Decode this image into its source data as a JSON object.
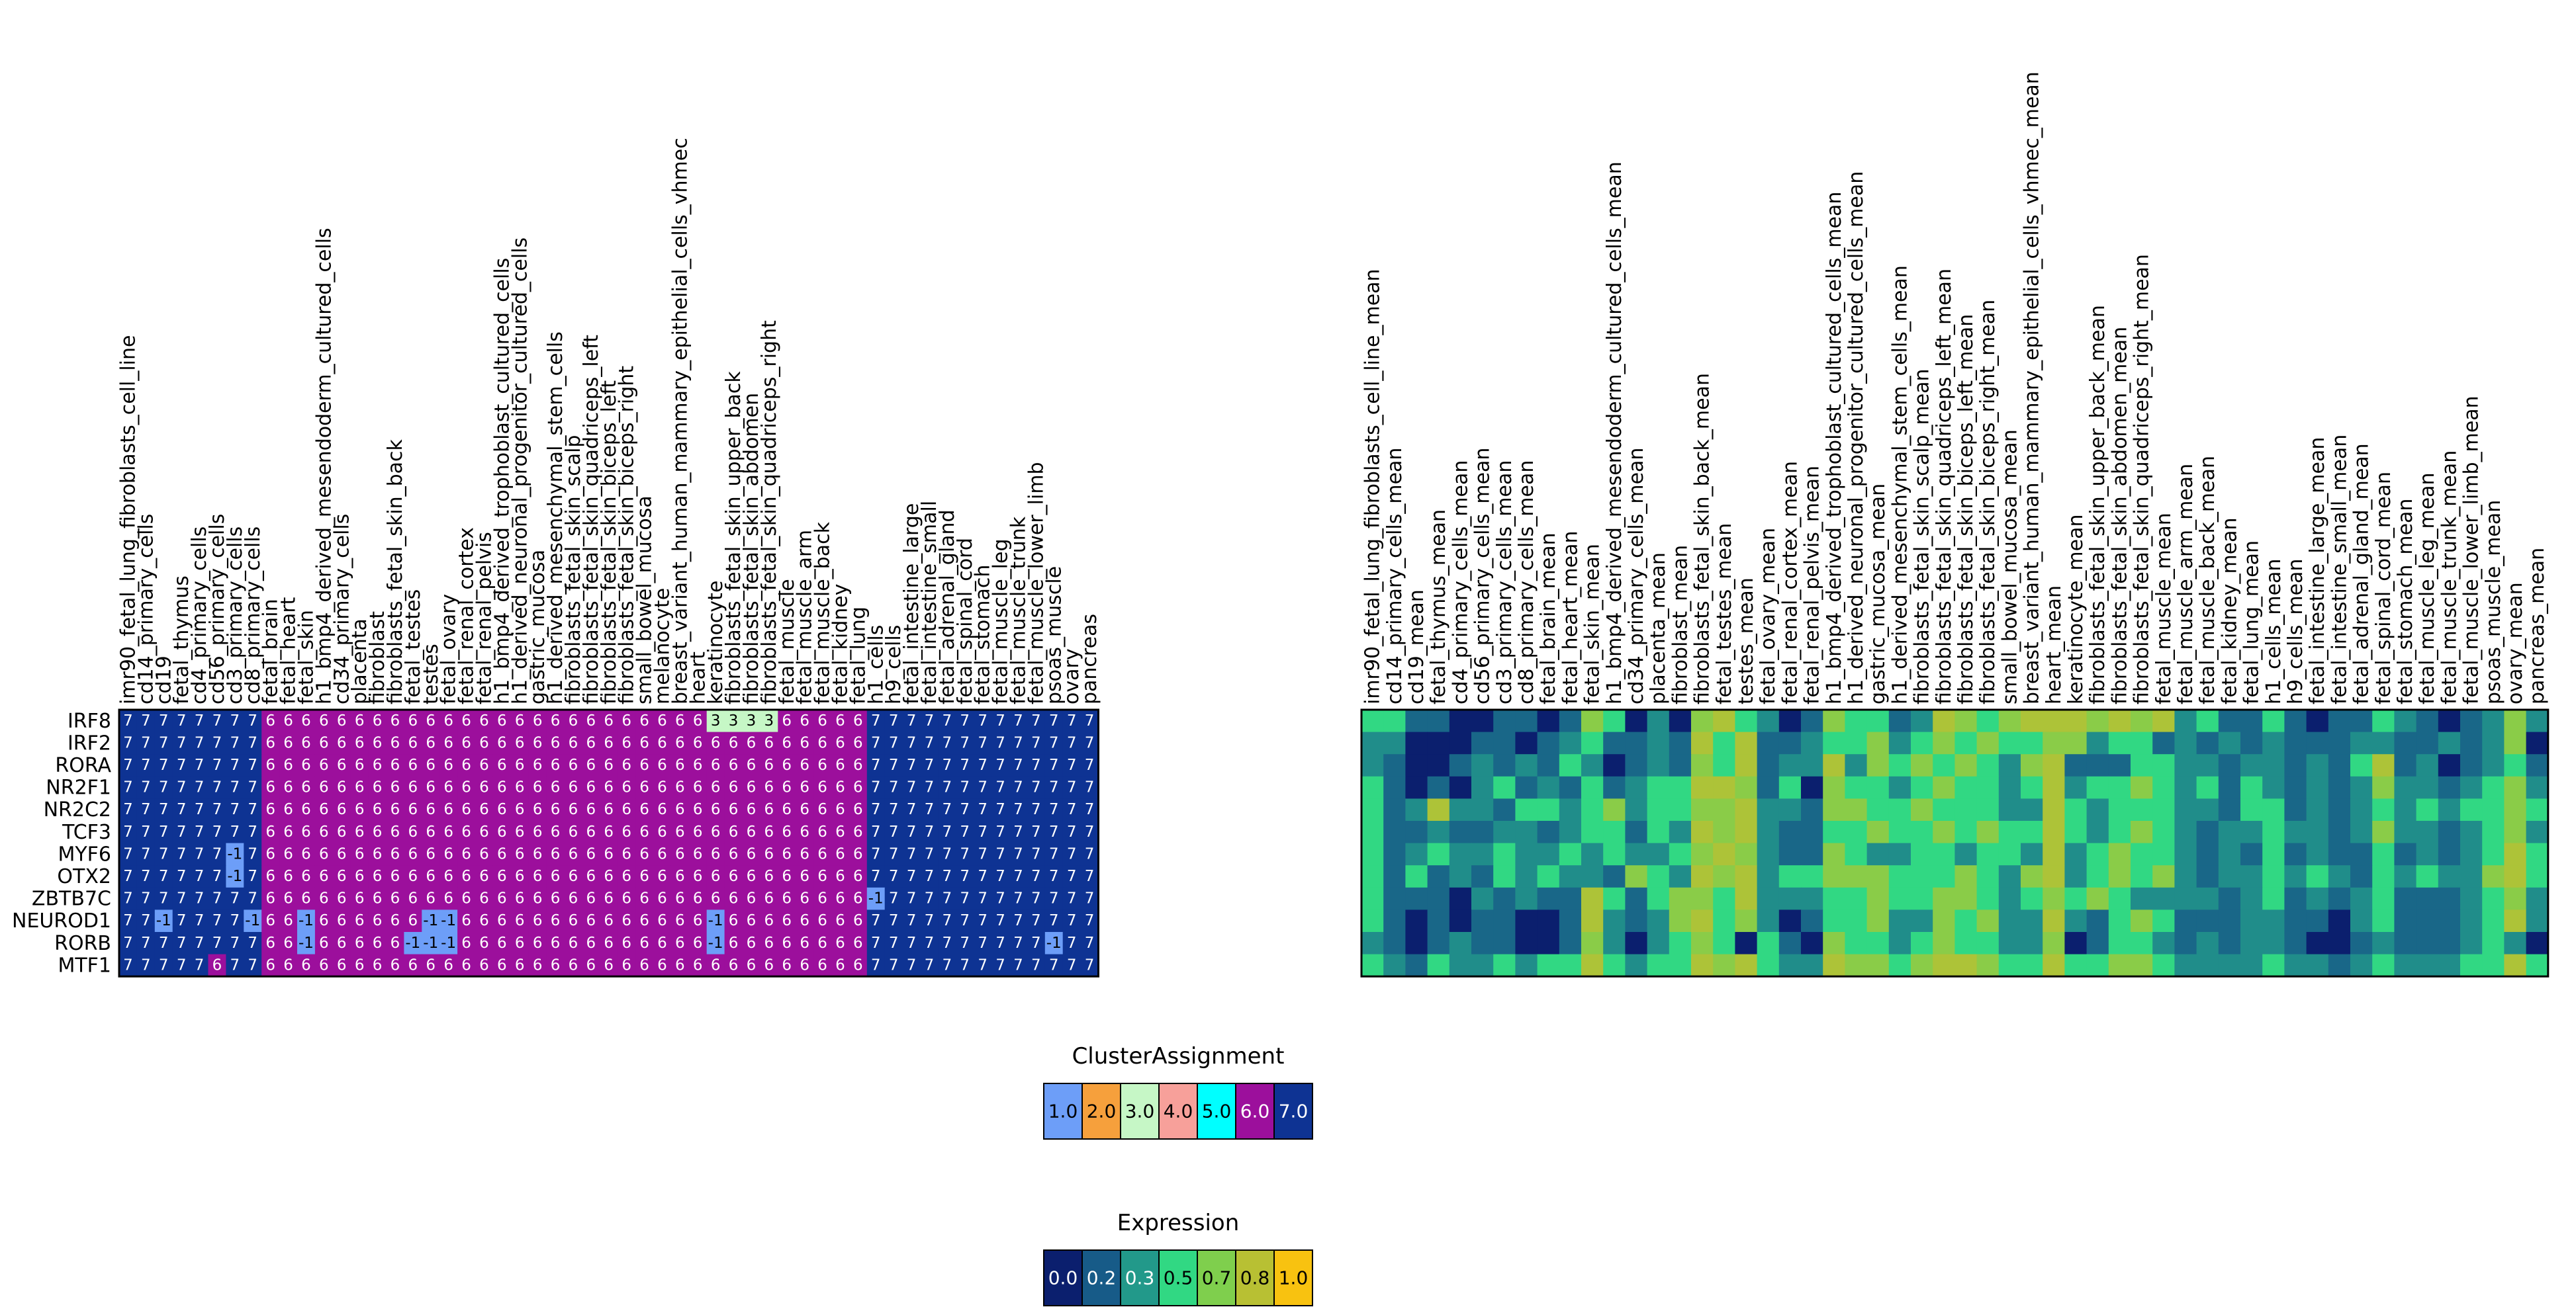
{
  "chart_data": {
    "type": "heatmap",
    "rows": [
      "IRF8",
      "IRF2",
      "RORA",
      "NR2F1",
      "NR2C2",
      "TCF3",
      "MYF6",
      "OTX2",
      "ZBTB7C",
      "NEUROD1",
      "RORB",
      "MTF1"
    ],
    "cluster_columns": [
      "imr90_fetal_lung_fibroblasts_cell_line",
      "cd14_primary_cells",
      "cd19",
      "fetal_thymus",
      "cd4_primary_cells",
      "cd56_primary_cells",
      "cd3_primary_cells",
      "cd8_primary_cells",
      "fetal_brain",
      "fetal_heart",
      "fetal_skin",
      "h1_bmp4_derived_mesendoderm_cultured_cells",
      "cd34_primary_cells",
      "placenta",
      "fibroblast",
      "fibroblasts_fetal_skin_back",
      "fetal_testes",
      "testes",
      "fetal_ovary",
      "fetal_renal_cortex",
      "fetal_renal_pelvis",
      "h1_bmp4_derived_trophoblast_cultured_cells",
      "h1_derived_neuronal_progenitor_cultured_cells",
      "gastric_mucosa",
      "h1_derived_mesenchymal_stem_cells",
      "fibroblasts_fetal_skin_scalp",
      "fibroblasts_fetal_skin_quadriceps_left",
      "fibroblasts_fetal_skin_biceps_left",
      "fibroblasts_fetal_skin_biceps_right",
      "small_bowel_mucosa",
      "melanocyte",
      "breast_variant_human_mammary_epithelial_cells_vhmec",
      "heart",
      "keratinocyte",
      "fibroblasts_fetal_skin_upper_back",
      "fibroblasts_fetal_skin_abdomen",
      "fibroblasts_fetal_skin_quadriceps_right",
      "fetal_muscle",
      "fetal_muscle_arm",
      "fetal_muscle_back",
      "fetal_kidney",
      "fetal_lung",
      "h1_cells",
      "h9_cells",
      "fetal_intestine_large",
      "fetal_intestine_small",
      "fetal_adrenal_gland",
      "fetal_spinal_cord",
      "fetal_stomach",
      "fetal_muscle_leg",
      "fetal_muscle_trunk",
      "fetal_muscle_lower_limb",
      "psoas_muscle",
      "ovary",
      "pancreas"
    ],
    "expression_columns": [
      "imr90_fetal_lung_fibroblasts_cell_line_mean",
      "cd14_primary_cells_mean",
      "cd19_mean",
      "fetal_thymus_mean",
      "cd4_primary_cells_mean",
      "cd56_primary_cells_mean",
      "cd3_primary_cells_mean",
      "cd8_primary_cells_mean",
      "fetal_brain_mean",
      "fetal_heart_mean",
      "fetal_skin_mean",
      "h1_bmp4_derived_mesendoderm_cultured_cells_mean",
      "cd34_primary_cells_mean",
      "placenta_mean",
      "fibroblast_mean",
      "fibroblasts_fetal_skin_back_mean",
      "fetal_testes_mean",
      "testes_mean",
      "fetal_ovary_mean",
      "fetal_renal_cortex_mean",
      "fetal_renal_pelvis_mean",
      "h1_bmp4_derived_trophoblast_cultured_cells_mean",
      "h1_derived_neuronal_progenitor_cultured_cells_mean",
      "gastric_mucosa_mean",
      "h1_derived_mesenchymal_stem_cells_mean",
      "fibroblasts_fetal_skin_scalp_mean",
      "fibroblasts_fetal_skin_quadriceps_left_mean",
      "fibroblasts_fetal_skin_biceps_left_mean",
      "fibroblasts_fetal_skin_biceps_right_mean",
      "small_bowel_mucosa_mean",
      "breast_variant_human_mammary_epithelial_cells_vhmec_mean",
      "heart_mean",
      "keratinocyte_mean",
      "fibroblasts_fetal_skin_upper_back_mean",
      "fibroblasts_fetal_skin_abdomen_mean",
      "fibroblasts_fetal_skin_quadriceps_right_mean",
      "fetal_muscle_mean",
      "fetal_muscle_arm_mean",
      "fetal_muscle_back_mean",
      "fetal_kidney_mean",
      "fetal_lung_mean",
      "h1_cells_mean",
      "h9_cells_mean",
      "fetal_intestine_large_mean",
      "fetal_intestine_small_mean",
      "fetal_adrenal_gland_mean",
      "fetal_spinal_cord_mean",
      "fetal_stomach_mean",
      "fetal_muscle_leg_mean",
      "fetal_muscle_trunk_mean",
      "fetal_muscle_lower_limb_mean",
      "psoas_muscle_mean",
      "ovary_mean",
      "pancreas_mean"
    ],
    "cluster_groups": [
      {
        "value": 7,
        "count": 8
      },
      {
        "value": 6,
        "count": 34
      },
      {
        "value": 7,
        "count": 13
      }
    ],
    "cluster_overrides": [
      {
        "row": "IRF8",
        "cols": [
          33,
          34,
          35,
          36
        ],
        "value": 3
      },
      {
        "row": "MYF6",
        "cols": [
          6
        ],
        "value": -1
      },
      {
        "row": "OTX2",
        "cols": [
          6
        ],
        "value": -1
      },
      {
        "row": "ZBTB7C",
        "cols": [
          42
        ],
        "value": -1
      },
      {
        "row": "NEUROD1",
        "cols": [
          2,
          7,
          10,
          17,
          18,
          33
        ],
        "value": -1
      },
      {
        "row": "RORB",
        "cols": [
          10,
          16,
          17,
          18,
          33,
          52
        ],
        "value": -1
      },
      {
        "row": "MTF1",
        "cols": [
          5
        ],
        "value": 6
      }
    ],
    "expression_values": [
      [
        0.5,
        0.5,
        0.2,
        0.2,
        0.0,
        0.0,
        0.2,
        0.2,
        0.0,
        0.2,
        0.7,
        0.5,
        0.0,
        0.3,
        0.0,
        0.7,
        0.8,
        0.5,
        0.3,
        0.0,
        0.2,
        0.7,
        0.5,
        0.5,
        0.2,
        0.3,
        0.8,
        0.7,
        0.5,
        0.7,
        0.8,
        0.8,
        0.8,
        0.7,
        0.8,
        0.7,
        0.8,
        0.3,
        0.5,
        0.2,
        0.2,
        0.5,
        0.2,
        0.0,
        0.2,
        0.2,
        0.5,
        0.3,
        0.2,
        0.0,
        0.2,
        0.3,
        0.7,
        0.3
      ],
      [
        0.3,
        0.3,
        0.0,
        0.0,
        0.0,
        0.2,
        0.2,
        0.0,
        0.2,
        0.3,
        0.5,
        0.2,
        0.2,
        0.3,
        0.2,
        0.8,
        0.5,
        0.8,
        0.2,
        0.2,
        0.3,
        0.5,
        0.5,
        0.7,
        0.3,
        0.5,
        0.7,
        0.5,
        0.7,
        0.5,
        0.5,
        0.7,
        0.7,
        0.3,
        0.5,
        0.5,
        0.2,
        0.3,
        0.2,
        0.3,
        0.2,
        0.3,
        0.2,
        0.2,
        0.2,
        0.3,
        0.3,
        0.2,
        0.2,
        0.3,
        0.2,
        0.3,
        0.7,
        0.0
      ],
      [
        0.3,
        0.2,
        0.0,
        0.0,
        0.2,
        0.3,
        0.2,
        0.3,
        0.2,
        0.5,
        0.3,
        0.0,
        0.2,
        0.3,
        0.2,
        0.7,
        0.5,
        0.8,
        0.2,
        0.3,
        0.3,
        0.8,
        0.3,
        0.7,
        0.5,
        0.7,
        0.5,
        0.7,
        0.5,
        0.3,
        0.7,
        0.8,
        0.2,
        0.2,
        0.2,
        0.5,
        0.5,
        0.3,
        0.3,
        0.2,
        0.3,
        0.3,
        0.2,
        0.3,
        0.2,
        0.5,
        0.8,
        0.2,
        0.3,
        0.0,
        0.2,
        0.3,
        0.5,
        0.2
      ],
      [
        0.5,
        0.2,
        0.0,
        0.2,
        0.0,
        0.3,
        0.5,
        0.2,
        0.3,
        0.2,
        0.5,
        0.2,
        0.3,
        0.5,
        0.5,
        0.8,
        0.8,
        0.7,
        0.2,
        0.5,
        0.0,
        0.7,
        0.5,
        0.5,
        0.3,
        0.5,
        0.7,
        0.5,
        0.5,
        0.3,
        0.5,
        0.8,
        0.3,
        0.5,
        0.5,
        0.7,
        0.5,
        0.3,
        0.5,
        0.2,
        0.5,
        0.3,
        0.2,
        0.3,
        0.2,
        0.3,
        0.7,
        0.3,
        0.3,
        0.2,
        0.3,
        0.5,
        0.7,
        0.3
      ],
      [
        0.5,
        0.2,
        0.3,
        0.8,
        0.3,
        0.3,
        0.2,
        0.5,
        0.5,
        0.3,
        0.5,
        0.7,
        0.3,
        0.5,
        0.5,
        0.7,
        0.7,
        0.8,
        0.3,
        0.3,
        0.2,
        0.7,
        0.7,
        0.5,
        0.5,
        0.7,
        0.5,
        0.5,
        0.5,
        0.3,
        0.3,
        0.8,
        0.5,
        0.3,
        0.5,
        0.5,
        0.5,
        0.3,
        0.3,
        0.2,
        0.5,
        0.5,
        0.2,
        0.3,
        0.2,
        0.3,
        0.5,
        0.3,
        0.5,
        0.3,
        0.5,
        0.5,
        0.7,
        0.5
      ],
      [
        0.5,
        0.2,
        0.2,
        0.3,
        0.2,
        0.2,
        0.3,
        0.3,
        0.2,
        0.3,
        0.5,
        0.5,
        0.2,
        0.5,
        0.3,
        0.8,
        0.7,
        0.8,
        0.3,
        0.2,
        0.2,
        0.5,
        0.5,
        0.7,
        0.5,
        0.5,
        0.7,
        0.5,
        0.7,
        0.5,
        0.5,
        0.8,
        0.5,
        0.3,
        0.5,
        0.7,
        0.5,
        0.3,
        0.2,
        0.3,
        0.3,
        0.5,
        0.3,
        0.3,
        0.2,
        0.3,
        0.7,
        0.3,
        0.3,
        0.2,
        0.3,
        0.5,
        0.7,
        0.3
      ],
      [
        0.5,
        0.2,
        0.3,
        0.5,
        0.3,
        0.3,
        0.5,
        0.3,
        0.3,
        0.5,
        0.3,
        0.5,
        0.3,
        0.3,
        0.5,
        0.7,
        0.8,
        0.7,
        0.3,
        0.2,
        0.2,
        0.7,
        0.5,
        0.3,
        0.3,
        0.5,
        0.5,
        0.3,
        0.5,
        0.5,
        0.3,
        0.8,
        0.3,
        0.5,
        0.7,
        0.5,
        0.5,
        0.3,
        0.2,
        0.3,
        0.2,
        0.5,
        0.2,
        0.3,
        0.2,
        0.2,
        0.5,
        0.2,
        0.3,
        0.2,
        0.3,
        0.5,
        0.8,
        0.5
      ],
      [
        0.5,
        0.2,
        0.5,
        0.2,
        0.3,
        0.2,
        0.5,
        0.3,
        0.5,
        0.3,
        0.3,
        0.2,
        0.7,
        0.5,
        0.3,
        0.8,
        0.7,
        0.8,
        0.3,
        0.5,
        0.5,
        0.7,
        0.7,
        0.7,
        0.5,
        0.5,
        0.5,
        0.7,
        0.5,
        0.3,
        0.7,
        0.8,
        0.3,
        0.5,
        0.7,
        0.5,
        0.7,
        0.3,
        0.2,
        0.3,
        0.3,
        0.5,
        0.3,
        0.5,
        0.3,
        0.2,
        0.5,
        0.3,
        0.5,
        0.3,
        0.3,
        0.7,
        0.8,
        0.5
      ],
      [
        0.5,
        0.2,
        0.2,
        0.2,
        0.0,
        0.3,
        0.2,
        0.3,
        0.2,
        0.2,
        0.8,
        0.5,
        0.2,
        0.5,
        0.7,
        0.7,
        0.5,
        0.8,
        0.3,
        0.3,
        0.3,
        0.5,
        0.5,
        0.7,
        0.5,
        0.5,
        0.7,
        0.7,
        0.5,
        0.3,
        0.5,
        0.7,
        0.5,
        0.7,
        0.5,
        0.3,
        0.3,
        0.3,
        0.3,
        0.2,
        0.3,
        0.5,
        0.2,
        0.3,
        0.2,
        0.3,
        0.5,
        0.2,
        0.2,
        0.2,
        0.3,
        0.5,
        0.7,
        0.3
      ],
      [
        0.5,
        0.2,
        0.0,
        0.2,
        0.0,
        0.2,
        0.2,
        0.0,
        0.0,
        0.2,
        0.8,
        0.3,
        0.2,
        0.3,
        0.7,
        0.8,
        0.5,
        0.7,
        0.3,
        0.0,
        0.2,
        0.5,
        0.5,
        0.7,
        0.3,
        0.3,
        0.7,
        0.5,
        0.7,
        0.3,
        0.3,
        0.8,
        0.3,
        0.2,
        0.5,
        0.7,
        0.5,
        0.2,
        0.2,
        0.2,
        0.3,
        0.3,
        0.2,
        0.2,
        0.0,
        0.3,
        0.5,
        0.2,
        0.2,
        0.2,
        0.3,
        0.5,
        0.8,
        0.3
      ],
      [
        0.3,
        0.2,
        0.0,
        0.2,
        0.3,
        0.2,
        0.2,
        0.0,
        0.0,
        0.2,
        0.7,
        0.3,
        0.0,
        0.3,
        0.5,
        0.7,
        0.5,
        0.0,
        0.5,
        0.2,
        0.0,
        0.7,
        0.5,
        0.5,
        0.3,
        0.5,
        0.7,
        0.5,
        0.5,
        0.3,
        0.3,
        0.7,
        0.0,
        0.2,
        0.5,
        0.5,
        0.3,
        0.2,
        0.3,
        0.2,
        0.3,
        0.3,
        0.2,
        0.0,
        0.0,
        0.2,
        0.3,
        0.2,
        0.2,
        0.2,
        0.3,
        0.5,
        0.3,
        0.0
      ],
      [
        0.5,
        0.3,
        0.2,
        0.5,
        0.3,
        0.3,
        0.5,
        0.3,
        0.5,
        0.5,
        0.8,
        0.5,
        0.3,
        0.5,
        0.5,
        0.8,
        0.7,
        0.8,
        0.5,
        0.3,
        0.3,
        0.8,
        0.7,
        0.7,
        0.5,
        0.7,
        0.8,
        0.8,
        0.7,
        0.5,
        0.5,
        0.8,
        0.5,
        0.5,
        0.7,
        0.7,
        0.5,
        0.3,
        0.3,
        0.3,
        0.3,
        0.5,
        0.3,
        0.3,
        0.2,
        0.3,
        0.5,
        0.3,
        0.3,
        0.3,
        0.5,
        0.5,
        0.8,
        0.5
      ]
    ],
    "legends": {
      "cluster": {
        "title": "ClusterAssignment",
        "entries": [
          {
            "label": "1.0",
            "color": "#6d9ef8"
          },
          {
            "label": "2.0",
            "color": "#f6a03c"
          },
          {
            "label": "3.0",
            "color": "#c6f7c6"
          },
          {
            "label": "4.0",
            "color": "#f7a09a"
          },
          {
            "label": "5.0",
            "color": "#00ffff"
          },
          {
            "label": "6.0",
            "color": "#9c0f9c"
          },
          {
            "label": "7.0",
            "color": "#0e3393"
          }
        ]
      },
      "expression": {
        "title": "Expression",
        "entries": [
          {
            "label": "0.0",
            "color": "#0b1f6e"
          },
          {
            "label": "0.2",
            "color": "#175b88"
          },
          {
            "label": "0.3",
            "color": "#22998a"
          },
          {
            "label": "0.5",
            "color": "#31d883"
          },
          {
            "label": "0.7",
            "color": "#7fcf4d"
          },
          {
            "label": "0.8",
            "color": "#b8c033"
          },
          {
            "label": "1.0",
            "color": "#f8c210"
          }
        ]
      }
    },
    "cell_colors": {
      "7": "#0e3393",
      "6": "#9c0f9c",
      "3": "#c6f7c6",
      "-1": "#6d9ef8"
    }
  }
}
